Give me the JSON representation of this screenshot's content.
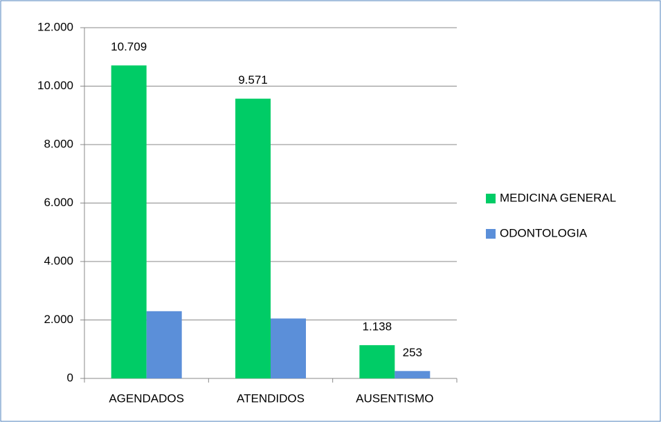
{
  "chart_data": {
    "type": "bar",
    "categories": [
      "AGENDADOS",
      "ATENDIDOS",
      "AUSENTISMO"
    ],
    "series": [
      {
        "name": "MEDICINA GENERAL",
        "color": "#00cc66",
        "values": [
          10709,
          9571,
          1138
        ],
        "value_labels": [
          "10.709",
          "9.571",
          "1.138"
        ]
      },
      {
        "name": "ODONTOLOGIA",
        "color": "#5b8fd9",
        "values": [
          2300,
          2050,
          253
        ],
        "value_labels": [
          null,
          null,
          "253"
        ]
      }
    ],
    "ylim": [
      0,
      12000
    ],
    "yticks": [
      0,
      {
        "value": 2000,
        "label": "2.000"
      },
      {
        "value": 4000,
        "label": "4.000"
      },
      {
        "value": 6000,
        "label": "6.000"
      },
      {
        "value": 8000,
        "label": "8.000"
      },
      {
        "value": 10000,
        "label": "10.000"
      },
      {
        "value": 12000,
        "label": "12.000"
      }
    ],
    "grid": true,
    "legend": "right"
  }
}
